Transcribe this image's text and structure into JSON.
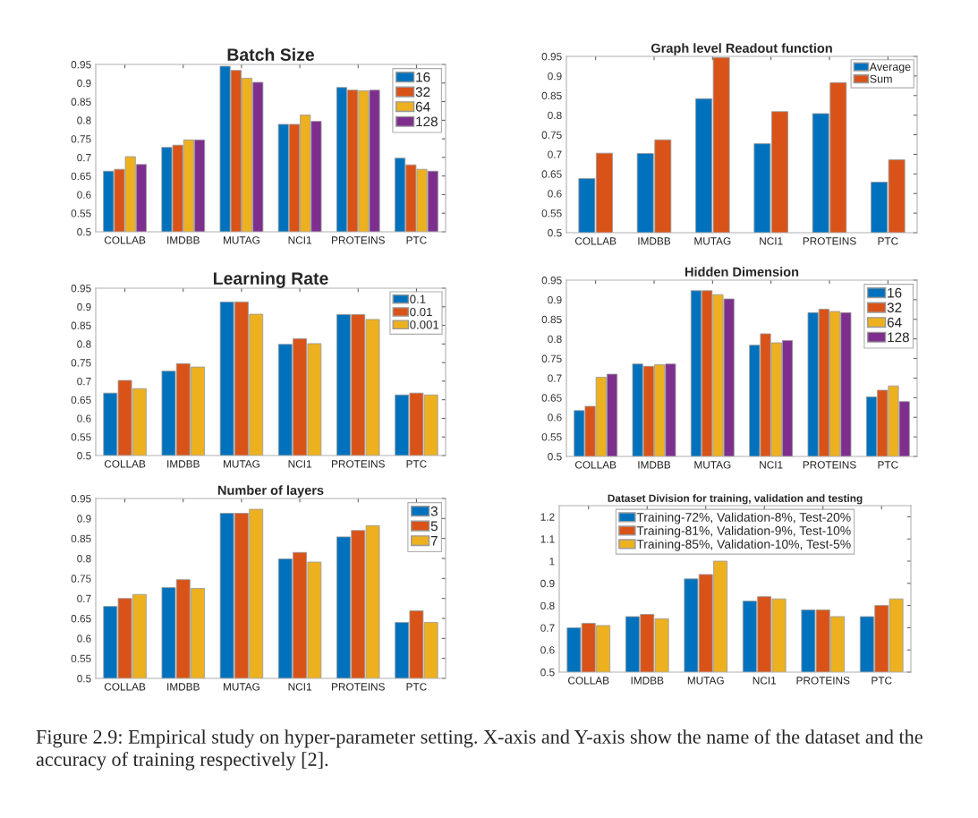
{
  "chart_data": [
    {
      "type": "bar",
      "title": "Batch Size",
      "categories": [
        "COLLAB",
        "IMDBB",
        "MUTAG",
        "NCI1",
        "PROTEINS",
        "PTC"
      ],
      "ylim": [
        0.5,
        0.95
      ],
      "yticks": [
        0.5,
        0.55,
        0.6,
        0.65,
        0.7,
        0.75,
        0.8,
        0.85,
        0.9,
        0.95
      ],
      "legend": "top right",
      "series": [
        {
          "name": "16",
          "color": "#0072bd",
          "values": [
            0.663,
            0.727,
            0.945,
            0.789,
            0.888,
            0.698
          ]
        },
        {
          "name": "32",
          "color": "#d95319",
          "values": [
            0.668,
            0.733,
            0.934,
            0.789,
            0.881,
            0.68
          ]
        },
        {
          "name": "64",
          "color": "#edb120",
          "values": [
            0.702,
            0.747,
            0.913,
            0.814,
            0.879,
            0.668
          ]
        },
        {
          "name": "128",
          "color": "#7e2f8e",
          "values": [
            0.681,
            0.747,
            0.902,
            0.797,
            0.881,
            0.663
          ]
        }
      ]
    },
    {
      "type": "bar",
      "title": "Graph level Readout function",
      "categories": [
        "COLLAB",
        "IMDBB",
        "MUTAG",
        "NCI1",
        "PROTEINS",
        "PTC"
      ],
      "ylim": [
        0.5,
        0.95
      ],
      "yticks": [
        0.5,
        0.55,
        0.6,
        0.65,
        0.7,
        0.75,
        0.8,
        0.85,
        0.9,
        0.95
      ],
      "legend": "top right",
      "series": [
        {
          "name": "Average",
          "color": "#0072bd",
          "values": [
            0.638,
            0.702,
            0.842,
            0.727,
            0.804,
            0.629
          ]
        },
        {
          "name": "Sum",
          "color": "#d95319",
          "values": [
            0.703,
            0.737,
            0.947,
            0.809,
            0.883,
            0.686
          ]
        }
      ]
    },
    {
      "type": "bar",
      "title": "Learning Rate",
      "categories": [
        "COLLAB",
        "IMDBB",
        "MUTAG",
        "NCI1",
        "PROTEINS",
        "PTC"
      ],
      "ylim": [
        0.5,
        0.95
      ],
      "yticks": [
        0.5,
        0.55,
        0.6,
        0.65,
        0.7,
        0.75,
        0.8,
        0.85,
        0.9,
        0.95
      ],
      "legend": "top right",
      "series": [
        {
          "name": "0.1",
          "color": "#0072bd",
          "values": [
            0.668,
            0.727,
            0.913,
            0.799,
            0.879,
            0.663
          ]
        },
        {
          "name": "0.01",
          "color": "#d95319",
          "values": [
            0.702,
            0.747,
            0.913,
            0.814,
            0.879,
            0.668
          ]
        },
        {
          "name": "0.001",
          "color": "#edb120",
          "values": [
            0.68,
            0.738,
            0.88,
            0.801,
            0.866,
            0.663
          ]
        }
      ]
    },
    {
      "type": "bar",
      "title": "Hidden Dimension",
      "categories": [
        "COLLAB",
        "IMDBB",
        "MUTAG",
        "NCI1",
        "PROTEINS",
        "PTC"
      ],
      "ylim": [
        0.5,
        0.95
      ],
      "yticks": [
        0.5,
        0.55,
        0.6,
        0.65,
        0.7,
        0.75,
        0.8,
        0.85,
        0.9,
        0.95
      ],
      "legend": "top right",
      "series": [
        {
          "name": "16",
          "color": "#0072bd",
          "values": [
            0.617,
            0.736,
            0.923,
            0.784,
            0.867,
            0.652
          ]
        },
        {
          "name": "32",
          "color": "#d95319",
          "values": [
            0.628,
            0.73,
            0.923,
            0.813,
            0.876,
            0.669
          ]
        },
        {
          "name": "64",
          "color": "#edb120",
          "values": [
            0.702,
            0.734,
            0.913,
            0.79,
            0.87,
            0.68
          ]
        },
        {
          "name": "128",
          "color": "#7e2f8e",
          "values": [
            0.71,
            0.736,
            0.902,
            0.796,
            0.867,
            0.64
          ]
        }
      ]
    },
    {
      "type": "bar",
      "title": "Number of layers",
      "categories": [
        "COLLAB",
        "IMDBB",
        "MUTAG",
        "NCI1",
        "PROTEINS",
        "PTC"
      ],
      "ylim": [
        0.5,
        0.95
      ],
      "yticks": [
        0.5,
        0.55,
        0.6,
        0.65,
        0.7,
        0.75,
        0.8,
        0.85,
        0.9,
        0.95
      ],
      "legend": "top right",
      "series": [
        {
          "name": "3",
          "color": "#0072bd",
          "values": [
            0.68,
            0.727,
            0.913,
            0.799,
            0.854,
            0.64
          ]
        },
        {
          "name": "5",
          "color": "#d95319",
          "values": [
            0.7,
            0.747,
            0.913,
            0.815,
            0.87,
            0.669
          ]
        },
        {
          "name": "7",
          "color": "#edb120",
          "values": [
            0.71,
            0.725,
            0.923,
            0.791,
            0.882,
            0.64
          ]
        }
      ]
    },
    {
      "type": "bar",
      "title": "Dataset Division for training, validation and testing",
      "categories": [
        "COLLAB",
        "IMDBB",
        "MUTAG",
        "NCI1",
        "PROTEINS",
        "PTC"
      ],
      "ylim": [
        0.5,
        1.25
      ],
      "yticks": [
        0.5,
        0.6,
        0.7,
        0.8,
        0.9,
        1,
        1.1,
        1.2
      ],
      "legend": "top",
      "series": [
        {
          "name": "Training-72%, Validation-8%, Test-20%",
          "color": "#0072bd",
          "values": [
            0.7,
            0.75,
            0.92,
            0.82,
            0.78,
            0.75
          ]
        },
        {
          "name": "Training-81%, Validation-9%, Test-10%",
          "color": "#d95319",
          "values": [
            0.72,
            0.76,
            0.94,
            0.84,
            0.78,
            0.8
          ]
        },
        {
          "name": "Training-85%, Validation-10%, Test-5%",
          "color": "#edb120",
          "values": [
            0.71,
            0.74,
            1.0,
            0.83,
            0.75,
            0.83
          ]
        }
      ],
      "annotations": [
        "Figure 2.9: Empirical study on hyper-parameter setting. X-axis and Y-axis show the name of the dataset and the accuracy of training respectively [2]."
      ]
    }
  ]
}
